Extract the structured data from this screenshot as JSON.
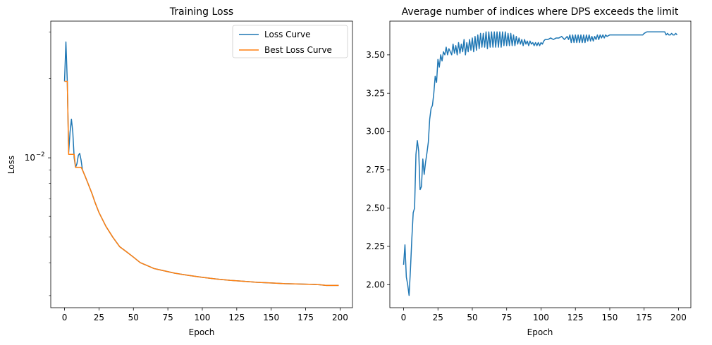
{
  "chart_data": [
    {
      "type": "line",
      "title": "Training Loss",
      "xlabel": "Epoch",
      "ylabel": "Loss",
      "yscale": "log",
      "xlim": [
        -10,
        209
      ],
      "ylim": [
        0.0027,
        0.033
      ],
      "xticks": [
        0,
        25,
        50,
        75,
        100,
        125,
        150,
        175,
        200
      ],
      "ytick_labels": [
        {
          "base": "10",
          "exp": "−2",
          "value": 0.01
        }
      ],
      "minor_yticks": [
        0.003,
        0.004,
        0.005,
        0.006,
        0.007,
        0.008,
        0.009,
        0.02,
        0.03
      ],
      "grid": false,
      "legend_position": "top-right",
      "series": [
        {
          "name": "Loss Curve",
          "color": "#1f77b4",
          "points": [
            [
              0,
              0.0195
            ],
            [
              1,
              0.0275
            ],
            [
              2,
              0.0195
            ],
            [
              3,
              0.0105
            ],
            [
              4,
              0.0125
            ],
            [
              5,
              0.014
            ],
            [
              6,
              0.0125
            ],
            [
              7,
              0.01
            ],
            [
              8,
              0.0092
            ],
            [
              9,
              0.0095
            ],
            [
              10,
              0.0102
            ],
            [
              11,
              0.0104
            ],
            [
              12,
              0.0098
            ],
            [
              13,
              0.009
            ],
            [
              15,
              0.0085
            ],
            [
              17,
              0.008
            ],
            [
              20,
              0.0073
            ],
            [
              22,
              0.0068
            ],
            [
              25,
              0.0062
            ],
            [
              30,
              0.0055
            ],
            [
              35,
              0.005
            ],
            [
              40,
              0.0046
            ],
            [
              45,
              0.0044
            ],
            [
              50,
              0.0042
            ],
            [
              55,
              0.004
            ],
            [
              60,
              0.0039
            ],
            [
              65,
              0.0038
            ],
            [
              70,
              0.00375
            ],
            [
              80,
              0.00365
            ],
            [
              90,
              0.00358
            ],
            [
              100,
              0.00352
            ],
            [
              110,
              0.00347
            ],
            [
              120,
              0.00343
            ],
            [
              130,
              0.0034
            ],
            [
              140,
              0.00337
            ],
            [
              150,
              0.00335
            ],
            [
              160,
              0.00333
            ],
            [
              170,
              0.00332
            ],
            [
              180,
              0.00331
            ],
            [
              185,
              0.0033
            ],
            [
              190,
              0.00328
            ],
            [
              195,
              0.00328
            ],
            [
              199,
              0.00328
            ]
          ]
        },
        {
          "name": "Best Loss Curve",
          "color": "#ff7f0e",
          "points": [
            [
              0,
              0.0195
            ],
            [
              1,
              0.0195
            ],
            [
              2,
              0.0195
            ],
            [
              3,
              0.0103
            ],
            [
              4,
              0.0103
            ],
            [
              5,
              0.0103
            ],
            [
              6,
              0.0103
            ],
            [
              7,
              0.0103
            ],
            [
              8,
              0.0092
            ],
            [
              9,
              0.0092
            ],
            [
              10,
              0.0092
            ],
            [
              11,
              0.0092
            ],
            [
              12,
              0.0092
            ],
            [
              13,
              0.009
            ],
            [
              15,
              0.0085
            ],
            [
              17,
              0.008
            ],
            [
              20,
              0.0073
            ],
            [
              22,
              0.0068
            ],
            [
              25,
              0.0062
            ],
            [
              30,
              0.0055
            ],
            [
              35,
              0.005
            ],
            [
              40,
              0.0046
            ],
            [
              45,
              0.0044
            ],
            [
              50,
              0.0042
            ],
            [
              55,
              0.004
            ],
            [
              60,
              0.0039
            ],
            [
              65,
              0.0038
            ],
            [
              70,
              0.00375
            ],
            [
              80,
              0.00365
            ],
            [
              90,
              0.00358
            ],
            [
              100,
              0.00352
            ],
            [
              110,
              0.00347
            ],
            [
              120,
              0.00343
            ],
            [
              130,
              0.0034
            ],
            [
              140,
              0.00337
            ],
            [
              150,
              0.00335
            ],
            [
              160,
              0.00333
            ],
            [
              170,
              0.00332
            ],
            [
              180,
              0.00331
            ],
            [
              185,
              0.0033
            ],
            [
              190,
              0.00328
            ],
            [
              195,
              0.00328
            ],
            [
              199,
              0.00328
            ]
          ]
        }
      ]
    },
    {
      "type": "line",
      "title": "Average number of indices where DPS exceeds the limit",
      "xlabel": "Epoch",
      "ylabel": "",
      "xlim": [
        -10,
        209
      ],
      "ylim": [
        1.85,
        3.72
      ],
      "xticks": [
        0,
        25,
        50,
        75,
        100,
        125,
        150,
        175,
        200
      ],
      "yticks": [
        2.0,
        2.25,
        2.5,
        2.75,
        3.0,
        3.25,
        3.5
      ],
      "ytick_labels": [
        "2.00",
        "2.25",
        "2.50",
        "2.75",
        "3.00",
        "3.25",
        "3.50"
      ],
      "grid": false,
      "series": [
        {
          "color": "#1f77b4",
          "points": [
            [
              0,
              2.13
            ],
            [
              1,
              2.26
            ],
            [
              2,
              2.05
            ],
            [
              3,
              2.0
            ],
            [
              4,
              1.93
            ],
            [
              5,
              2.1
            ],
            [
              6,
              2.3
            ],
            [
              7,
              2.47
            ],
            [
              8,
              2.5
            ],
            [
              9,
              2.85
            ],
            [
              10,
              2.94
            ],
            [
              11,
              2.87
            ],
            [
              12,
              2.62
            ],
            [
              13,
              2.64
            ],
            [
              14,
              2.82
            ],
            [
              15,
              2.72
            ],
            [
              16,
              2.8
            ],
            [
              17,
              2.86
            ],
            [
              18,
              2.93
            ],
            [
              19,
              3.08
            ],
            [
              20,
              3.15
            ],
            [
              21,
              3.17
            ],
            [
              22,
              3.25
            ],
            [
              23,
              3.36
            ],
            [
              24,
              3.32
            ],
            [
              25,
              3.47
            ],
            [
              26,
              3.42
            ],
            [
              27,
              3.5
            ],
            [
              28,
              3.46
            ],
            [
              29,
              3.52
            ],
            [
              30,
              3.5
            ],
            [
              31,
              3.55
            ],
            [
              32,
              3.5
            ],
            [
              33,
              3.54
            ],
            [
              34,
              3.52
            ],
            [
              35,
              3.5
            ],
            [
              36,
              3.57
            ],
            [
              37,
              3.51
            ],
            [
              38,
              3.56
            ],
            [
              39,
              3.5
            ],
            [
              40,
              3.58
            ],
            [
              41,
              3.51
            ],
            [
              42,
              3.57
            ],
            [
              43,
              3.52
            ],
            [
              44,
              3.6
            ],
            [
              45,
              3.5
            ],
            [
              46,
              3.58
            ],
            [
              47,
              3.52
            ],
            [
              48,
              3.6
            ],
            [
              49,
              3.53
            ],
            [
              50,
              3.61
            ],
            [
              51,
              3.52
            ],
            [
              52,
              3.62
            ],
            [
              53,
              3.53
            ],
            [
              54,
              3.63
            ],
            [
              55,
              3.54
            ],
            [
              56,
              3.64
            ],
            [
              57,
              3.55
            ],
            [
              58,
              3.64
            ],
            [
              59,
              3.55
            ],
            [
              60,
              3.65
            ],
            [
              61,
              3.54
            ],
            [
              62,
              3.65
            ],
            [
              63,
              3.55
            ],
            [
              64,
              3.65
            ],
            [
              65,
              3.55
            ],
            [
              66,
              3.65
            ],
            [
              67,
              3.55
            ],
            [
              68,
              3.65
            ],
            [
              69,
              3.55
            ],
            [
              70,
              3.65
            ],
            [
              71,
              3.55
            ],
            [
              72,
              3.65
            ],
            [
              73,
              3.56
            ],
            [
              74,
              3.65
            ],
            [
              75,
              3.56
            ],
            [
              76,
              3.64
            ],
            [
              77,
              3.56
            ],
            [
              78,
              3.64
            ],
            [
              79,
              3.56
            ],
            [
              80,
              3.63
            ],
            [
              81,
              3.56
            ],
            [
              82,
              3.62
            ],
            [
              83,
              3.57
            ],
            [
              84,
              3.61
            ],
            [
              85,
              3.57
            ],
            [
              86,
              3.6
            ],
            [
              87,
              3.56
            ],
            [
              88,
              3.6
            ],
            [
              89,
              3.57
            ],
            [
              90,
              3.59
            ],
            [
              91,
              3.56
            ],
            [
              92,
              3.59
            ],
            [
              93,
              3.57
            ],
            [
              94,
              3.58
            ],
            [
              95,
              3.56
            ],
            [
              96,
              3.58
            ],
            [
              97,
              3.56
            ],
            [
              98,
              3.58
            ],
            [
              99,
              3.56
            ],
            [
              100,
              3.58
            ],
            [
              101,
              3.57
            ],
            [
              102,
              3.59
            ],
            [
              103,
              3.6
            ],
            [
              105,
              3.6
            ],
            [
              107,
              3.61
            ],
            [
              109,
              3.6
            ],
            [
              111,
              3.61
            ],
            [
              113,
              3.61
            ],
            [
              115,
              3.62
            ],
            [
              117,
              3.6
            ],
            [
              119,
              3.62
            ],
            [
              120,
              3.6
            ],
            [
              121,
              3.63
            ],
            [
              122,
              3.58
            ],
            [
              123,
              3.63
            ],
            [
              124,
              3.58
            ],
            [
              125,
              3.63
            ],
            [
              126,
              3.58
            ],
            [
              127,
              3.63
            ],
            [
              128,
              3.58
            ],
            [
              129,
              3.63
            ],
            [
              130,
              3.58
            ],
            [
              131,
              3.63
            ],
            [
              132,
              3.58
            ],
            [
              133,
              3.63
            ],
            [
              134,
              3.59
            ],
            [
              135,
              3.63
            ],
            [
              136,
              3.59
            ],
            [
              137,
              3.62
            ],
            [
              138,
              3.59
            ],
            [
              139,
              3.62
            ],
            [
              140,
              3.6
            ],
            [
              141,
              3.63
            ],
            [
              142,
              3.6
            ],
            [
              143,
              3.63
            ],
            [
              144,
              3.61
            ],
            [
              145,
              3.63
            ],
            [
              146,
              3.61
            ],
            [
              147,
              3.63
            ],
            [
              148,
              3.62
            ],
            [
              150,
              3.63
            ],
            [
              152,
              3.63
            ],
            [
              155,
              3.63
            ],
            [
              160,
              3.63
            ],
            [
              165,
              3.63
            ],
            [
              170,
              3.63
            ],
            [
              174,
              3.63
            ],
            [
              175,
              3.64
            ],
            [
              177,
              3.65
            ],
            [
              180,
              3.65
            ],
            [
              185,
              3.65
            ],
            [
              190,
              3.65
            ],
            [
              191,
              3.63
            ],
            [
              192,
              3.64
            ],
            [
              193,
              3.63
            ],
            [
              194,
              3.63
            ],
            [
              195,
              3.64
            ],
            [
              196,
              3.63
            ],
            [
              197,
              3.63
            ],
            [
              198,
              3.64
            ],
            [
              199,
              3.63
            ]
          ]
        }
      ]
    }
  ]
}
